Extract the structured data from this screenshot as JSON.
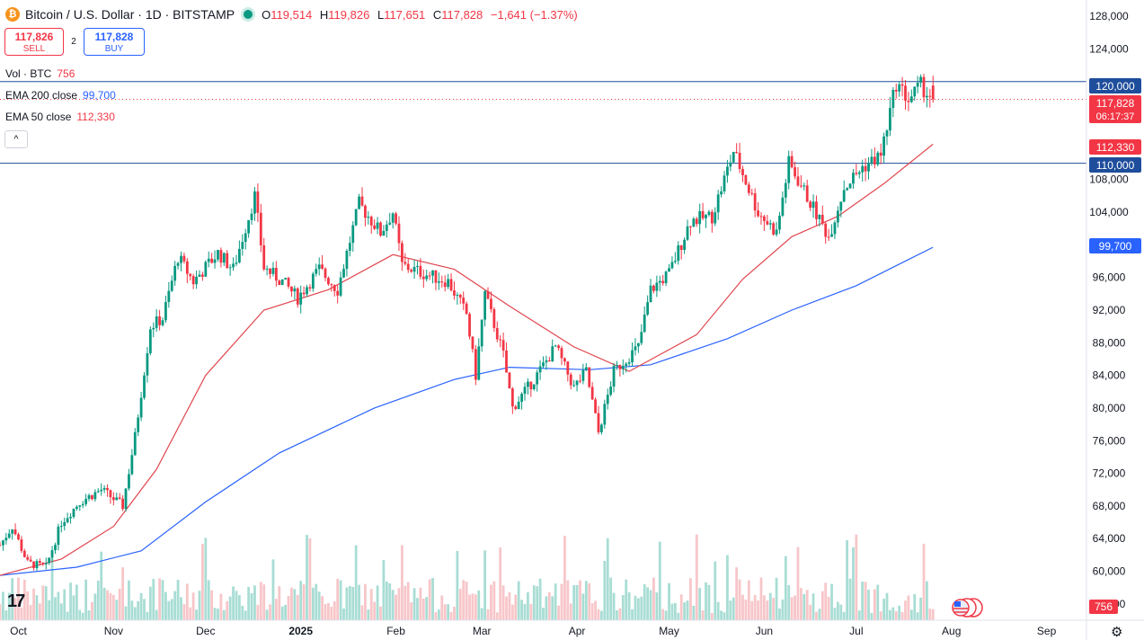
{
  "header": {
    "symbol_title": "Bitcoin / U.S. Dollar · 1D · BITSTAMP",
    "coin_glyph": "₿",
    "open_label": "O",
    "open": "119,514",
    "high_label": "H",
    "high": "119,826",
    "low_label": "L",
    "low": "117,651",
    "close_label": "C",
    "close": "117,828",
    "change": "−1,641 (−1.37%)"
  },
  "trade": {
    "sell_price": "117,826",
    "sell_label": "SELL",
    "spread": "2",
    "buy_price": "117,828",
    "buy_label": "BUY"
  },
  "legend": {
    "vol_name": "Vol · BTC",
    "vol_value": "756",
    "ema200_name": "EMA 200 close",
    "ema200_value": "99,700",
    "ema50_name": "EMA 50 close",
    "ema50_value": "112,330",
    "collapse_icon": "^"
  },
  "price_labels": {
    "level_120k": "120,000",
    "last_price": "117,828",
    "countdown": "06:17:37",
    "ema50": "112,330",
    "level_110k": "110,000",
    "ema200": "99,700",
    "volume": "756"
  },
  "colors": {
    "up": "#089981",
    "down": "#f23645",
    "ema50": "#e0464e",
    "ema200": "#2962ff",
    "hline": "#1e4d9b",
    "bg": "#ffffff"
  },
  "icons": {
    "logo": "tradingview-logo-icon",
    "settings": "gear-icon",
    "flag": "us-flag-icon"
  },
  "tv_logo_text": "17",
  "gear_glyph": "⚙",
  "chart_data": {
    "type": "candlestick",
    "title": "Bitcoin / U.S. Dollar · 1D · BITSTAMP",
    "y_ticks": [
      56000,
      60000,
      64000,
      68000,
      72000,
      76000,
      80000,
      84000,
      88000,
      92000,
      96000,
      100000,
      104000,
      108000,
      124000,
      128000
    ],
    "y_tick_labels": [
      "56,000",
      "60,000",
      "64,000",
      "68,000",
      "72,000",
      "76,000",
      "80,000",
      "84,000",
      "88,000",
      "92,000",
      "96,000",
      "100,000",
      "104,000",
      "108,000",
      "124,000",
      "128,000"
    ],
    "ylim": [
      54000,
      130000
    ],
    "x_tick_labels": [
      "Oct",
      "Nov",
      "Dec",
      "2025",
      "Feb",
      "Mar",
      "Apr",
      "May",
      "Jun",
      "Jul",
      "Aug",
      "Sep"
    ],
    "x_range": [
      "2024-09-25",
      "2025-09-14"
    ],
    "horizontal_lines": [
      120000,
      110000
    ],
    "last_close": 117828,
    "path": [
      [
        "2024-09-25",
        63200
      ],
      [
        "2024-09-29",
        65500
      ],
      [
        "2024-10-04",
        61000
      ],
      [
        "2024-10-10",
        60500
      ],
      [
        "2024-10-15",
        66000
      ],
      [
        "2024-10-21",
        68500
      ],
      [
        "2024-10-28",
        70000
      ],
      [
        "2024-11-04",
        68000
      ],
      [
        "2024-11-08",
        76500
      ],
      [
        "2024-11-13",
        90000
      ],
      [
        "2024-11-17",
        91000
      ],
      [
        "2024-11-22",
        98500
      ],
      [
        "2024-11-27",
        95500
      ],
      [
        "2024-12-05",
        99000
      ],
      [
        "2024-12-10",
        97000
      ],
      [
        "2024-12-17",
        106000
      ],
      [
        "2024-12-20",
        97200
      ],
      [
        "2024-12-26",
        95500
      ],
      [
        "2024-12-31",
        93500
      ],
      [
        "2025-01-07",
        97000
      ],
      [
        "2025-01-13",
        94500
      ],
      [
        "2025-01-20",
        105000
      ],
      [
        "2025-01-27",
        101500
      ],
      [
        "2025-01-31",
        104000
      ],
      [
        "2025-02-03",
        97500
      ],
      [
        "2025-02-10",
        96500
      ],
      [
        "2025-02-18",
        95500
      ],
      [
        "2025-02-24",
        91500
      ],
      [
        "2025-02-27",
        84000
      ],
      [
        "2025-03-02",
        94000
      ],
      [
        "2025-03-08",
        86500
      ],
      [
        "2025-03-11",
        80000
      ],
      [
        "2025-03-18",
        83500
      ],
      [
        "2025-03-25",
        87500
      ],
      [
        "2025-03-31",
        82500
      ],
      [
        "2025-04-04",
        84500
      ],
      [
        "2025-04-08",
        77000
      ],
      [
        "2025-04-13",
        84500
      ],
      [
        "2025-04-21",
        87500
      ],
      [
        "2025-04-25",
        94500
      ],
      [
        "2025-05-01",
        96500
      ],
      [
        "2025-05-08",
        103000
      ],
      [
        "2025-05-15",
        103500
      ],
      [
        "2025-05-22",
        111500
      ],
      [
        "2025-05-30",
        104000
      ],
      [
        "2025-06-05",
        101500
      ],
      [
        "2025-06-09",
        110000
      ],
      [
        "2025-06-17",
        104500
      ],
      [
        "2025-06-22",
        101000
      ],
      [
        "2025-06-27",
        107000
      ],
      [
        "2025-07-03",
        109500
      ],
      [
        "2025-07-09",
        111000
      ],
      [
        "2025-07-14",
        119800
      ],
      [
        "2025-07-18",
        117800
      ],
      [
        "2025-07-22",
        119500
      ],
      [
        "2025-07-26",
        117828
      ]
    ],
    "ema50": [
      [
        "2024-09-25",
        59500
      ],
      [
        "2024-10-15",
        61500
      ],
      [
        "2024-11-01",
        65500
      ],
      [
        "2024-11-15",
        72500
      ],
      [
        "2024-12-01",
        84000
      ],
      [
        "2024-12-20",
        92000
      ],
      [
        "2025-01-10",
        94500
      ],
      [
        "2025-01-31",
        98800
      ],
      [
        "2025-02-20",
        97000
      ],
      [
        "2025-03-10",
        92500
      ],
      [
        "2025-03-31",
        87500
      ],
      [
        "2025-04-18",
        84500
      ],
      [
        "2025-05-10",
        89000
      ],
      [
        "2025-05-25",
        95800
      ],
      [
        "2025-06-10",
        101000
      ],
      [
        "2025-06-25",
        103500
      ],
      [
        "2025-07-10",
        107500
      ],
      [
        "2025-07-26",
        112330
      ]
    ],
    "ema200": [
      [
        "2024-09-25",
        59500
      ],
      [
        "2024-10-20",
        60500
      ],
      [
        "2024-11-10",
        62500
      ],
      [
        "2024-12-01",
        68500
      ],
      [
        "2024-12-25",
        74500
      ],
      [
        "2025-01-25",
        80000
      ],
      [
        "2025-02-20",
        83500
      ],
      [
        "2025-03-10",
        85000
      ],
      [
        "2025-04-05",
        84700
      ],
      [
        "2025-04-25",
        85300
      ],
      [
        "2025-05-20",
        88500
      ],
      [
        "2025-06-10",
        92000
      ],
      [
        "2025-07-01",
        95000
      ],
      [
        "2025-07-26",
        99700
      ]
    ],
    "volume_label": "Vol · BTC",
    "volume_last": 756
  }
}
